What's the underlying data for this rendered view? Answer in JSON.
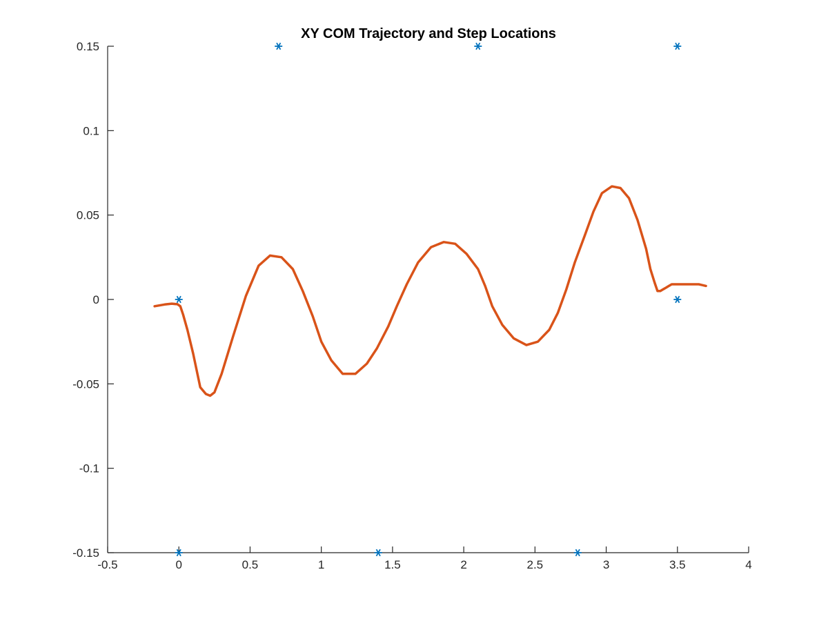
{
  "chart_data": {
    "type": "scatter",
    "title": "XY COM Trajectory and Step Locations",
    "xlabel": "",
    "ylabel": "",
    "xlim": [
      -0.5,
      4
    ],
    "ylim": [
      -0.15,
      0.15
    ],
    "xticks": [
      -0.5,
      0,
      0.5,
      1,
      1.5,
      2,
      2.5,
      3,
      3.5,
      4
    ],
    "xtick_labels": [
      "-0.5",
      "0",
      "0.5",
      "1",
      "1.5",
      "2",
      "2.5",
      "3",
      "3.5",
      "4"
    ],
    "yticks": [
      -0.15,
      -0.1,
      -0.05,
      0,
      0.05,
      0.1,
      0.15
    ],
    "ytick_labels": [
      "-0.15",
      "-0.1",
      "-0.05",
      "0",
      "0.05",
      "0.1",
      "0.15"
    ],
    "grid": false,
    "series": [
      {
        "kind": "line",
        "color": "#D95319",
        "x": [
          -0.17,
          -0.1,
          -0.05,
          -0.01,
          0.01,
          0.03,
          0.06,
          0.1,
          0.15,
          0.19,
          0.22,
          0.25,
          0.3,
          0.38,
          0.47,
          0.56,
          0.64,
          0.72,
          0.8,
          0.87,
          0.94,
          1.0,
          1.07,
          1.15,
          1.24,
          1.32,
          1.39,
          1.47,
          1.53,
          1.6,
          1.68,
          1.77,
          1.86,
          1.94,
          2.02,
          2.1,
          2.15,
          2.2,
          2.27,
          2.35,
          2.44,
          2.52,
          2.6,
          2.66,
          2.72,
          2.78,
          2.85,
          2.91,
          2.97,
          3.04,
          3.1,
          3.16,
          3.22,
          3.28,
          3.31,
          3.34,
          3.36,
          3.38,
          3.4,
          3.42,
          3.44,
          3.46,
          3.48,
          3.5,
          3.52,
          3.55,
          3.6,
          3.65,
          3.7
        ],
        "y": [
          -0.004,
          -0.003,
          -0.0025,
          -0.0028,
          -0.004,
          -0.009,
          -0.018,
          -0.032,
          -0.052,
          -0.056,
          -0.057,
          -0.055,
          -0.044,
          -0.022,
          0.002,
          0.02,
          0.026,
          0.025,
          0.018,
          0.005,
          -0.01,
          -0.025,
          -0.036,
          -0.044,
          -0.044,
          -0.038,
          -0.029,
          -0.016,
          -0.004,
          0.009,
          0.022,
          0.031,
          0.034,
          0.033,
          0.027,
          0.018,
          0.008,
          -0.004,
          -0.015,
          -0.023,
          -0.027,
          -0.025,
          -0.018,
          -0.008,
          0.006,
          0.022,
          0.038,
          0.052,
          0.063,
          0.067,
          0.066,
          0.06,
          0.047,
          0.03,
          0.018,
          0.01,
          0.005,
          0.005,
          0.006,
          0.007,
          0.008,
          0.009,
          0.009,
          0.009,
          0.009,
          0.009,
          0.009,
          0.009,
          0.008
        ]
      },
      {
        "kind": "scatter",
        "marker": "*",
        "color": "#0072BD",
        "x": [
          0,
          0,
          0.7,
          1.4,
          2.1,
          2.8,
          3.5,
          3.5
        ],
        "y": [
          0,
          -0.15,
          0.15,
          -0.15,
          0.15,
          -0.15,
          0.15,
          0
        ]
      }
    ]
  }
}
